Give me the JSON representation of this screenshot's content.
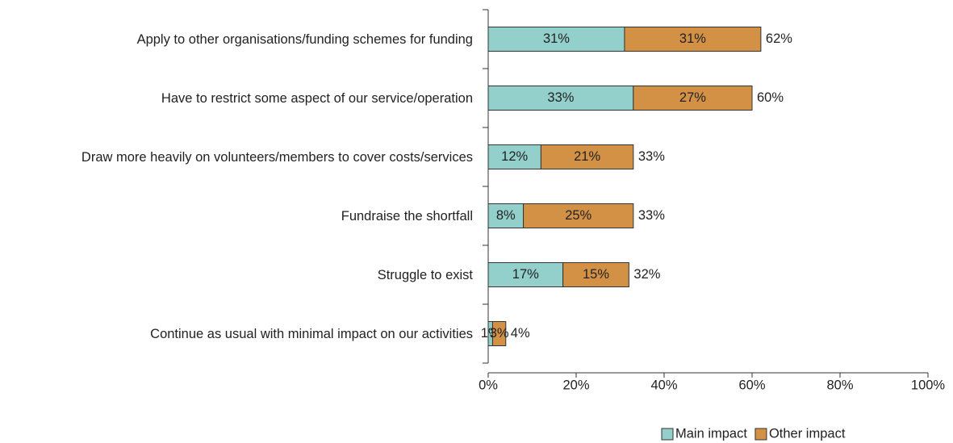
{
  "chart_data": {
    "type": "stacked_bar_horizontal",
    "categories": [
      "Apply to other organisations/funding schemes for funding",
      "Have to restrict some aspect of our service/operation",
      "Draw more heavily on volunteers/members to cover costs/services",
      "Fundraise the shortfall",
      "Struggle to exist",
      "Continue as usual with minimal impact on our activities"
    ],
    "series": [
      {
        "name": "Main impact",
        "color": "#93d0cb",
        "values": [
          31,
          33,
          12,
          8,
          17,
          1
        ],
        "value_labels": [
          "31%",
          "33%",
          "12%",
          "8%",
          "17%",
          "1%"
        ]
      },
      {
        "name": "Other impact",
        "color": "#d39146",
        "values": [
          31,
          27,
          21,
          25,
          15,
          3
        ],
        "value_labels": [
          "31%",
          "27%",
          "21%",
          "25%",
          "15%",
          "3%"
        ]
      }
    ],
    "totals": [
      62,
      60,
      33,
      33,
      32,
      4
    ],
    "total_labels": [
      "62%",
      "60%",
      "33%",
      "33%",
      "32%",
      "4%"
    ],
    "xlim": [
      0,
      100
    ],
    "xticks": [
      {
        "value": 0,
        "label": "0%"
      },
      {
        "value": 20,
        "label": "20%"
      },
      {
        "value": 40,
        "label": "40%"
      },
      {
        "value": 60,
        "label": "60%"
      },
      {
        "value": 80,
        "label": "80%"
      },
      {
        "value": 100,
        "label": "100%"
      }
    ],
    "legend": "bottom-right"
  }
}
